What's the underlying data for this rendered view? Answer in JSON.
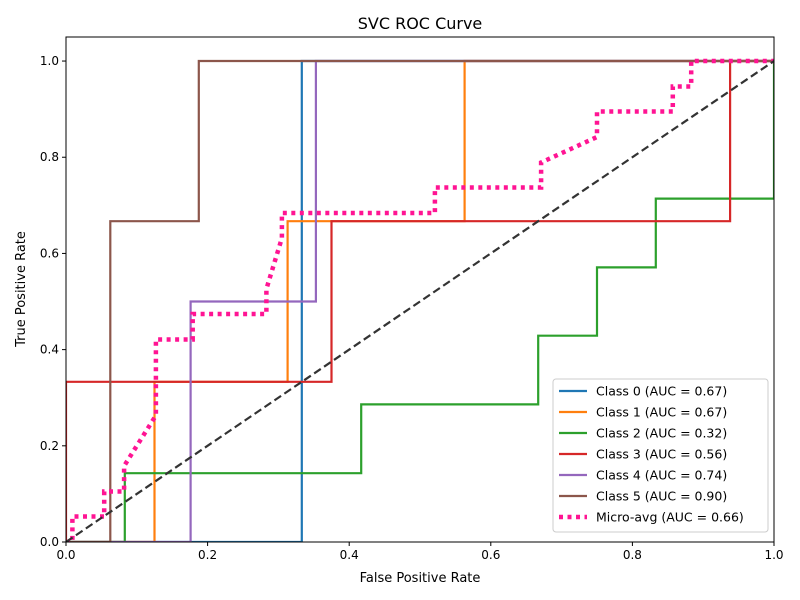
{
  "chart_data": {
    "type": "line",
    "title": "SVC ROC Curve",
    "xlabel": "False Positive Rate",
    "ylabel": "True Positive Rate",
    "xlim": [
      0,
      1
    ],
    "ylim": [
      0,
      1.05
    ],
    "xticks": [
      "0.0",
      "0.2",
      "0.4",
      "0.6",
      "0.8",
      "1.0"
    ],
    "yticks": [
      "0.0",
      "0.2",
      "0.4",
      "0.6",
      "0.8",
      "1.0"
    ],
    "grid": false,
    "legend_position": "lower-right",
    "series": [
      {
        "name": "Class 0 (AUC = 0.67)",
        "color": "#1f77b4",
        "style": "solid",
        "x": [
          0,
          0.333,
          0.333,
          0.333,
          1.0
        ],
        "y": [
          0,
          0,
          0.5,
          1.0,
          1.0
        ]
      },
      {
        "name": "Class 1 (AUC = 0.67)",
        "color": "#ff7f0e",
        "style": "solid",
        "x": [
          0,
          0.125,
          0.125,
          0.313,
          0.313,
          0.563,
          0.563,
          1.0
        ],
        "y": [
          0,
          0,
          0.333,
          0.333,
          0.667,
          0.667,
          1.0,
          1.0
        ]
      },
      {
        "name": "Class 2 (AUC = 0.32)",
        "color": "#2ca02c",
        "style": "solid",
        "x": [
          0,
          0.083,
          0.083,
          0.417,
          0.417,
          0.667,
          0.667,
          0.75,
          0.75,
          0.833,
          0.833,
          1.0,
          1.0
        ],
        "y": [
          0,
          0,
          0.143,
          0.143,
          0.286,
          0.286,
          0.429,
          0.429,
          0.571,
          0.571,
          0.714,
          0.714,
          1.0
        ]
      },
      {
        "name": "Class 3 (AUC = 0.56)",
        "color": "#d62728",
        "style": "solid",
        "x": [
          0,
          0,
          0.375,
          0.375,
          0.938,
          0.938,
          1.0
        ],
        "y": [
          0,
          0.333,
          0.333,
          0.667,
          0.667,
          1.0,
          1.0
        ]
      },
      {
        "name": "Class 4 (AUC = 0.74)",
        "color": "#9467bd",
        "style": "solid",
        "x": [
          0,
          0.176,
          0.176,
          0.353,
          0.353,
          1.0
        ],
        "y": [
          0,
          0,
          0.5,
          0.5,
          1.0,
          1.0
        ]
      },
      {
        "name": "Class 5 (AUC = 0.90)",
        "color": "#8c564b",
        "style": "solid",
        "x": [
          0,
          0.0625,
          0.0625,
          0.1875,
          0.1875,
          1.0
        ],
        "y": [
          0,
          0,
          0.667,
          0.667,
          1.0,
          1.0
        ]
      },
      {
        "name": "Micro-avg (AUC = 0.66)",
        "color": "#ff1493",
        "style": "dotted",
        "x": [
          0,
          0.009,
          0.009,
          0.054,
          0.054,
          0.082,
          0.082,
          0.127,
          0.127,
          0.179,
          0.179,
          0.2,
          0.2,
          0.283,
          0.283,
          0.305,
          0.305,
          0.521,
          0.521,
          0.671,
          0.671,
          0.75,
          0.75,
          0.857,
          0.857,
          0.883,
          0.883,
          1.0
        ],
        "y": [
          0,
          0,
          0.053,
          0.053,
          0.105,
          0.105,
          0.158,
          0.263,
          0.421,
          0.421,
          0.474,
          0.474,
          0.474,
          0.474,
          0.526,
          0.632,
          0.684,
          0.684,
          0.737,
          0.737,
          0.789,
          0.842,
          0.895,
          0.895,
          0.947,
          0.947,
          1.0,
          1.0
        ]
      }
    ],
    "reference_line": {
      "color": "#333333",
      "style": "dashed",
      "x": [
        0,
        1
      ],
      "y": [
        0,
        1
      ]
    }
  }
}
